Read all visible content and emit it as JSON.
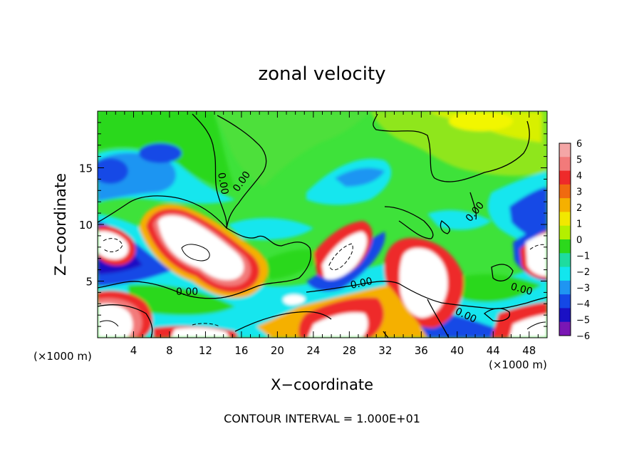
{
  "chart_data": {
    "type": "heatmap",
    "title": "zonal velocity",
    "xlabel": "X−coordinate",
    "ylabel": "Z−coordinate",
    "x_unit_left": "(×1000 m)",
    "x_unit_right": "(×1000 m)",
    "footer": "CONTOUR INTERVAL = 1.000E+01",
    "xlim": [
      0,
      50
    ],
    "ylim": [
      0,
      20
    ],
    "x_ticks": [
      4,
      8,
      12,
      16,
      20,
      24,
      28,
      32,
      36,
      40,
      44,
      48
    ],
    "x_tick_labels": [
      "4",
      "8",
      "12",
      "16",
      "20",
      "24",
      "28",
      "32",
      "36",
      "40",
      "44",
      "48"
    ],
    "y_ticks": [
      5,
      10,
      15
    ],
    "y_tick_labels": [
      "5",
      "10",
      "15"
    ],
    "colorbar": {
      "ticks": [
        6,
        5,
        4,
        3,
        2,
        1,
        0,
        -1,
        -2,
        -3,
        -4,
        -5,
        -6
      ],
      "tick_labels": [
        "6",
        "5",
        "4",
        "3",
        "2",
        "1",
        "0",
        "−1",
        "−2",
        "−3",
        "−4",
        "−5",
        "−6"
      ],
      "colors": [
        "#f4a6a6",
        "#f27a7a",
        "#ee2a2a",
        "#f06a10",
        "#f5b000",
        "#f2e800",
        "#b4ef00",
        "#2cd81c",
        "#1edca0",
        "#12e6ee",
        "#1f95f2",
        "#1448e6",
        "#1a10c4",
        "#7a16b4"
      ]
    },
    "contour_labels": [
      {
        "text": "0.00",
        "x": 13.8,
        "z": 14.3
      },
      {
        "text": "0.00",
        "x": 16.0,
        "z": 12.0
      },
      {
        "text": "0.00",
        "x": 8.6,
        "z": 4.2
      },
      {
        "text": "0.00",
        "x": 29.0,
        "z": 4.8
      },
      {
        "text": "0.00",
        "x": 40.8,
        "z": 1.4
      },
      {
        "text": "0.00",
        "x": 45.8,
        "z": 4.1
      },
      {
        "text": "0.00",
        "x": 42.0,
        "z": 11.3
      }
    ]
  }
}
